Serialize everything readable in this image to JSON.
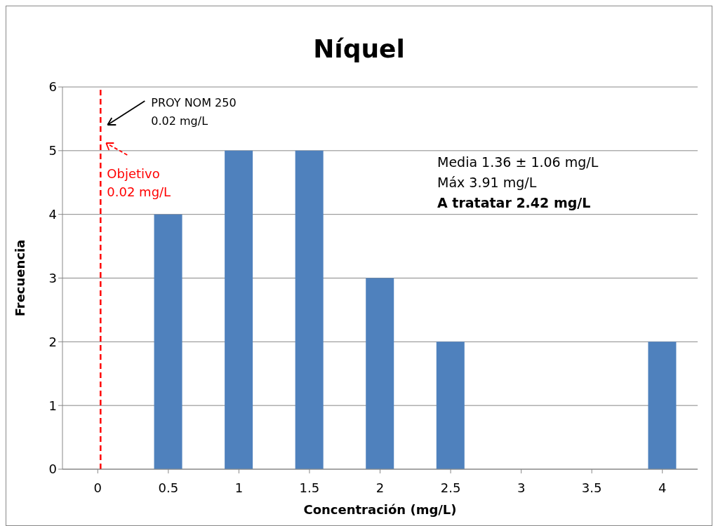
{
  "chart_data": {
    "type": "bar",
    "title": "Níquel",
    "xlabel": "Concentración (mg/L)",
    "ylabel": "Frecuencia",
    "x": [
      0,
      0.5,
      1,
      1.5,
      2,
      2.5,
      3,
      3.5,
      4
    ],
    "values": [
      0,
      4,
      5,
      5,
      3,
      2,
      0,
      0,
      2
    ],
    "color": "#4f81bd",
    "xlim": [
      -0.25,
      4.25
    ],
    "xticks": [
      0,
      0.5,
      1,
      1.5,
      2,
      2.5,
      3,
      3.5,
      4
    ],
    "ylim": [
      0,
      6
    ],
    "yticks": [
      0,
      1,
      2,
      3,
      4,
      5,
      6
    ],
    "grid": "y",
    "ref_lines": [
      {
        "axis": "x",
        "value": 0.02,
        "label": "Objetivo\n0.02 mg/L",
        "color": "#ff0000",
        "line_style": "dashed"
      }
    ],
    "annotations": [
      "PROY NOM 250\n0.02 mg/L",
      "Media 1.36 ± 1.06 mg/L",
      "Máx 3.91 mg/L",
      "A tratatar 2.42 mg/L"
    ]
  }
}
